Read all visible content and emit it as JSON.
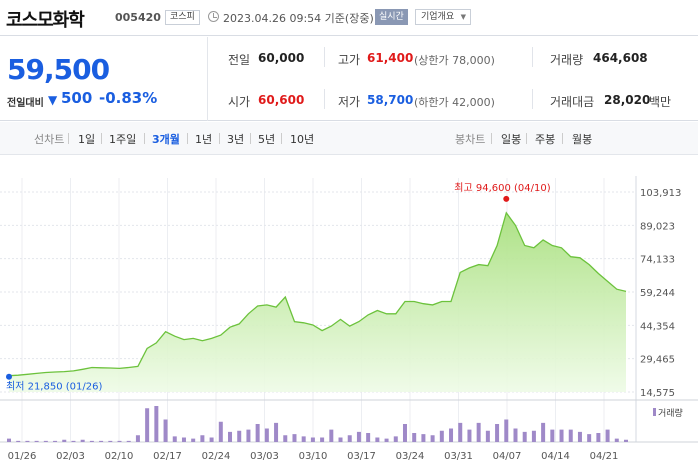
{
  "header": {
    "name": "코스모화학",
    "code": "005420",
    "market": "코스피",
    "timestamp": "2023.04.26 09:54 기준(장중)",
    "realtime": "실시간",
    "company_info": "기업개요"
  },
  "quote": {
    "price": "59,500",
    "change_label": "전일대비",
    "change_direction": "down",
    "change_amount": "500",
    "change_percent": "-0.83%",
    "prev_close_label": "전일",
    "prev_close": "60,000",
    "high_label": "고가",
    "high": "61,400",
    "upper_limit": "(상한가 78,000)",
    "volume_label": "거래량",
    "volume": "464,608",
    "open_label": "시가",
    "open": "60,600",
    "low_label": "저가",
    "low": "58,700",
    "lower_limit": "(하한가 42,000)",
    "value_label": "거래대금",
    "value": "28,020",
    "value_unit": "백만"
  },
  "toolbar": {
    "line_chart": "선차트",
    "periods": [
      "1일",
      "1주일",
      "3개월",
      "1년",
      "3년",
      "5년",
      "10년"
    ],
    "active_period": "3개월",
    "candle_chart": "봉차트",
    "candles": [
      "일봉",
      "주봉",
      "월봉"
    ]
  },
  "colors": {
    "rise": "#e01a1a",
    "fall": "#1a5ee0",
    "line": "#6cc23c",
    "volume": "#9f89c8"
  },
  "chart_data": {
    "type": "area",
    "y_ticks": [
      "103,913",
      "89,023",
      "74,133",
      "59,244",
      "44,354",
      "29,465",
      "14,575"
    ],
    "ylim": [
      14575,
      103913
    ],
    "x_ticks": [
      "01/26",
      "02/03",
      "02/10",
      "02/17",
      "02/24",
      "03/03",
      "03/10",
      "03/17",
      "03/24",
      "03/31",
      "04/07",
      "04/14",
      "04/21"
    ],
    "high_annotation": "최고 94,600 (04/10)",
    "low_annotation": "최저 21,850 (01/26)",
    "volume_legend": "거래량",
    "prices": [
      21850,
      22100,
      22500,
      22900,
      23300,
      23500,
      23700,
      24000,
      24700,
      25500,
      25400,
      25300,
      25100,
      25500,
      26000,
      34000,
      36500,
      41500,
      39500,
      38000,
      38500,
      37500,
      38500,
      40000,
      43500,
      45000,
      49500,
      53000,
      53500,
      52500,
      57000,
      46000,
      45500,
      44500,
      42000,
      44000,
      47000,
      44000,
      46000,
      49000,
      51000,
      49500,
      49500,
      55000,
      55000,
      54000,
      53500,
      55000,
      55000,
      68000,
      70000,
      71500,
      71000,
      80000,
      94600,
      89000,
      80000,
      79000,
      82500,
      80000,
      79000,
      75000,
      74500,
      71500,
      67500,
      64000,
      60500,
      59500
    ],
    "volumes": [
      3,
      1,
      1,
      1,
      1,
      1,
      2,
      1,
      2,
      1,
      1,
      1,
      1,
      1,
      6,
      30,
      32,
      20,
      5,
      4,
      3,
      6,
      4,
      18,
      9,
      10,
      11,
      16,
      12,
      17,
      6,
      7,
      5,
      4,
      4,
      11,
      4,
      6,
      9,
      8,
      4,
      3,
      5,
      16,
      8,
      7,
      6,
      10,
      12,
      17,
      11,
      17,
      10,
      16,
      20,
      12,
      9,
      10,
      17,
      11,
      11,
      11,
      9,
      7,
      8,
      11,
      3,
      2
    ],
    "volume_max": 32
  }
}
